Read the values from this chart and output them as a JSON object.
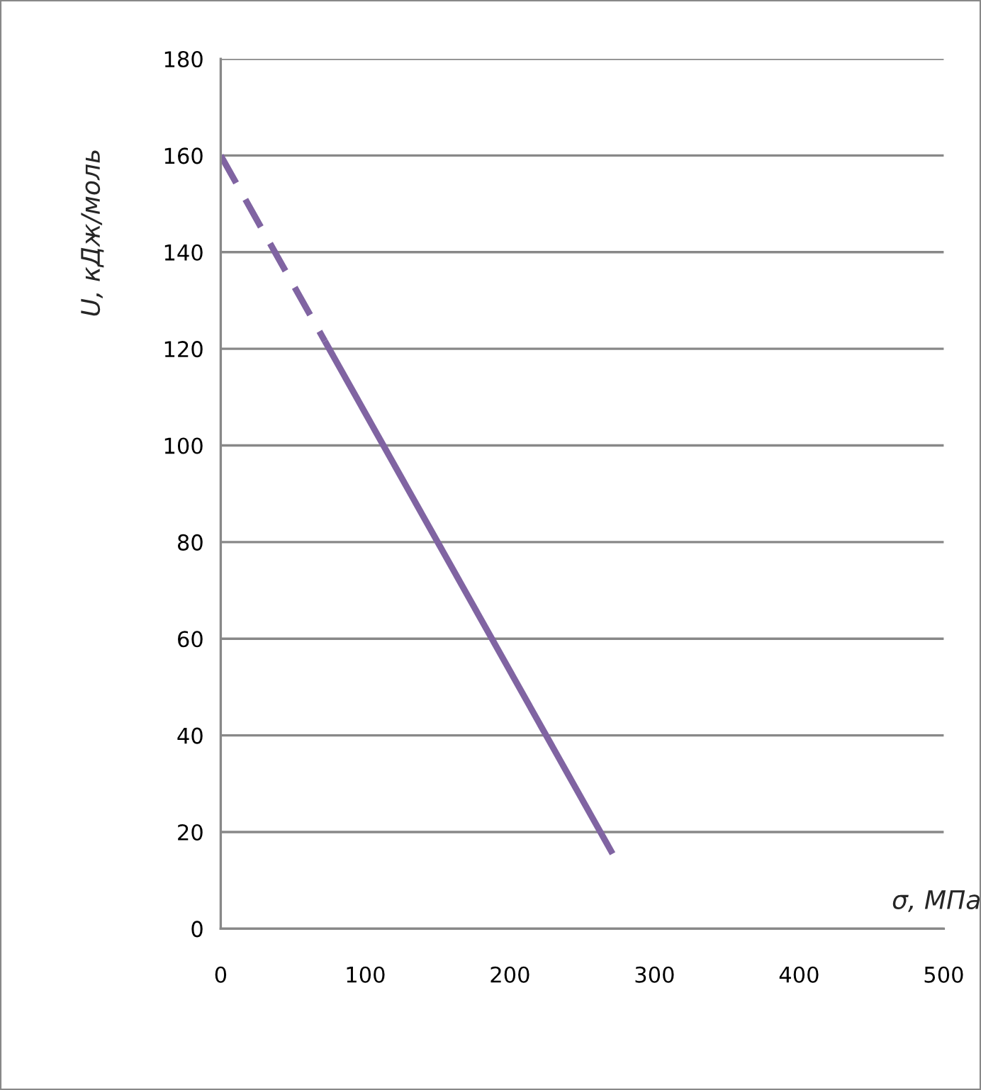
{
  "chart_data": {
    "type": "line",
    "xlabel": "σ, МПа",
    "ylabel": "U, кДж/моль",
    "series": [
      {
        "color": "#8064a2",
        "x": [
          0,
          72
        ],
        "values": [
          160,
          121.6
        ],
        "line_style": "dashed"
      },
      {
        "color": "#8064a2",
        "x": [
          72,
          271
        ],
        "values": [
          121.6,
          15.5
        ],
        "line_style": "solid"
      }
    ],
    "xlim": [
      0,
      500
    ],
    "xticks": [
      0,
      100,
      200,
      300,
      400,
      500
    ],
    "ylim": [
      0,
      180
    ],
    "yticks": [
      0,
      20,
      40,
      60,
      80,
      100,
      120,
      140,
      160,
      180
    ],
    "grid": "y",
    "legend": false,
    "marker": "none"
  }
}
